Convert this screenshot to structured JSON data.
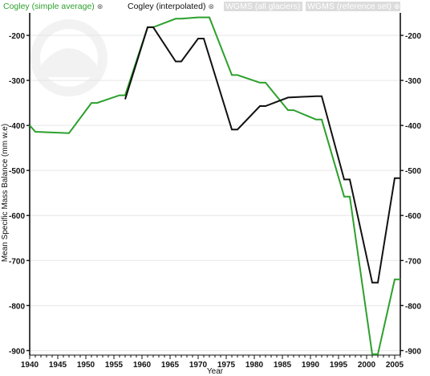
{
  "chart_data": {
    "type": "line",
    "title": "",
    "xlabel": "Year",
    "ylabel": "Mean Specific Mass Balance (mm w.e)",
    "xlim": [
      1940,
      2006
    ],
    "ylim": [
      -910,
      -150
    ],
    "x_ticks": [
      "1940",
      "1945",
      "1950",
      "1955",
      "1960",
      "1965",
      "1970",
      "1975",
      "1980",
      "1985",
      "1990",
      "1995",
      "2000",
      "2005"
    ],
    "y_ticks_left": [
      "-200",
      "-300",
      "-400",
      "-500",
      "-600",
      "-700",
      "-800",
      "-900"
    ],
    "y_ticks_right": [
      "-200",
      "-300",
      "-400",
      "-500",
      "-600",
      "-700",
      "-800",
      "-900"
    ],
    "grid": "horizontal",
    "legend_position": "top",
    "legend": [
      {
        "label": "Cogley (simple average)",
        "close": "⊗",
        "color": "#2ca02c",
        "active": true
      },
      {
        "label": "Cogley (interpolated)",
        "close": "⊗",
        "color": "#111111",
        "active": true
      },
      {
        "label": "WGMS (all glaciers)",
        "close": "⊕",
        "color": "#dcdcdc",
        "active": false
      },
      {
        "label": "WGMS (reference set)",
        "close": "⊕",
        "color": "#dcdcdc",
        "active": false
      }
    ],
    "series": [
      {
        "name": "Cogley (simple average)",
        "color": "#2ca02c",
        "x": [
          1940,
          1941,
          1947,
          1951,
          1952,
          1956,
          1957,
          1961,
          1962,
          1966,
          1967,
          1970,
          1971,
          1972,
          1976,
          1977,
          1981,
          1982,
          1986,
          1987,
          1991,
          1992,
          1996,
          1997,
          2001,
          2002,
          2005,
          2006
        ],
        "y": [
          -400,
          -414,
          -417,
          -350,
          -350,
          -333,
          -333,
          -182,
          -182,
          -163,
          -163,
          -160,
          -160,
          -160,
          -288,
          -288,
          -305,
          -305,
          -366,
          -366,
          -387,
          -387,
          -558,
          -558,
          -908,
          -908,
          -742,
          -742
        ]
      },
      {
        "name": "Cogley (interpolated)",
        "color": "#111111",
        "x": [
          1957,
          1961,
          1962,
          1966,
          1967,
          1970,
          1971,
          1976,
          1977,
          1981,
          1982,
          1986,
          1991,
          1992,
          1996,
          1997,
          2001,
          2002,
          2005,
          2006
        ],
        "y": [
          -342,
          -182,
          -182,
          -258,
          -258,
          -207,
          -207,
          -409,
          -409,
          -357,
          -357,
          -338,
          -335,
          -335,
          -520,
          -520,
          -749,
          -749,
          -517,
          -517
        ]
      }
    ]
  }
}
